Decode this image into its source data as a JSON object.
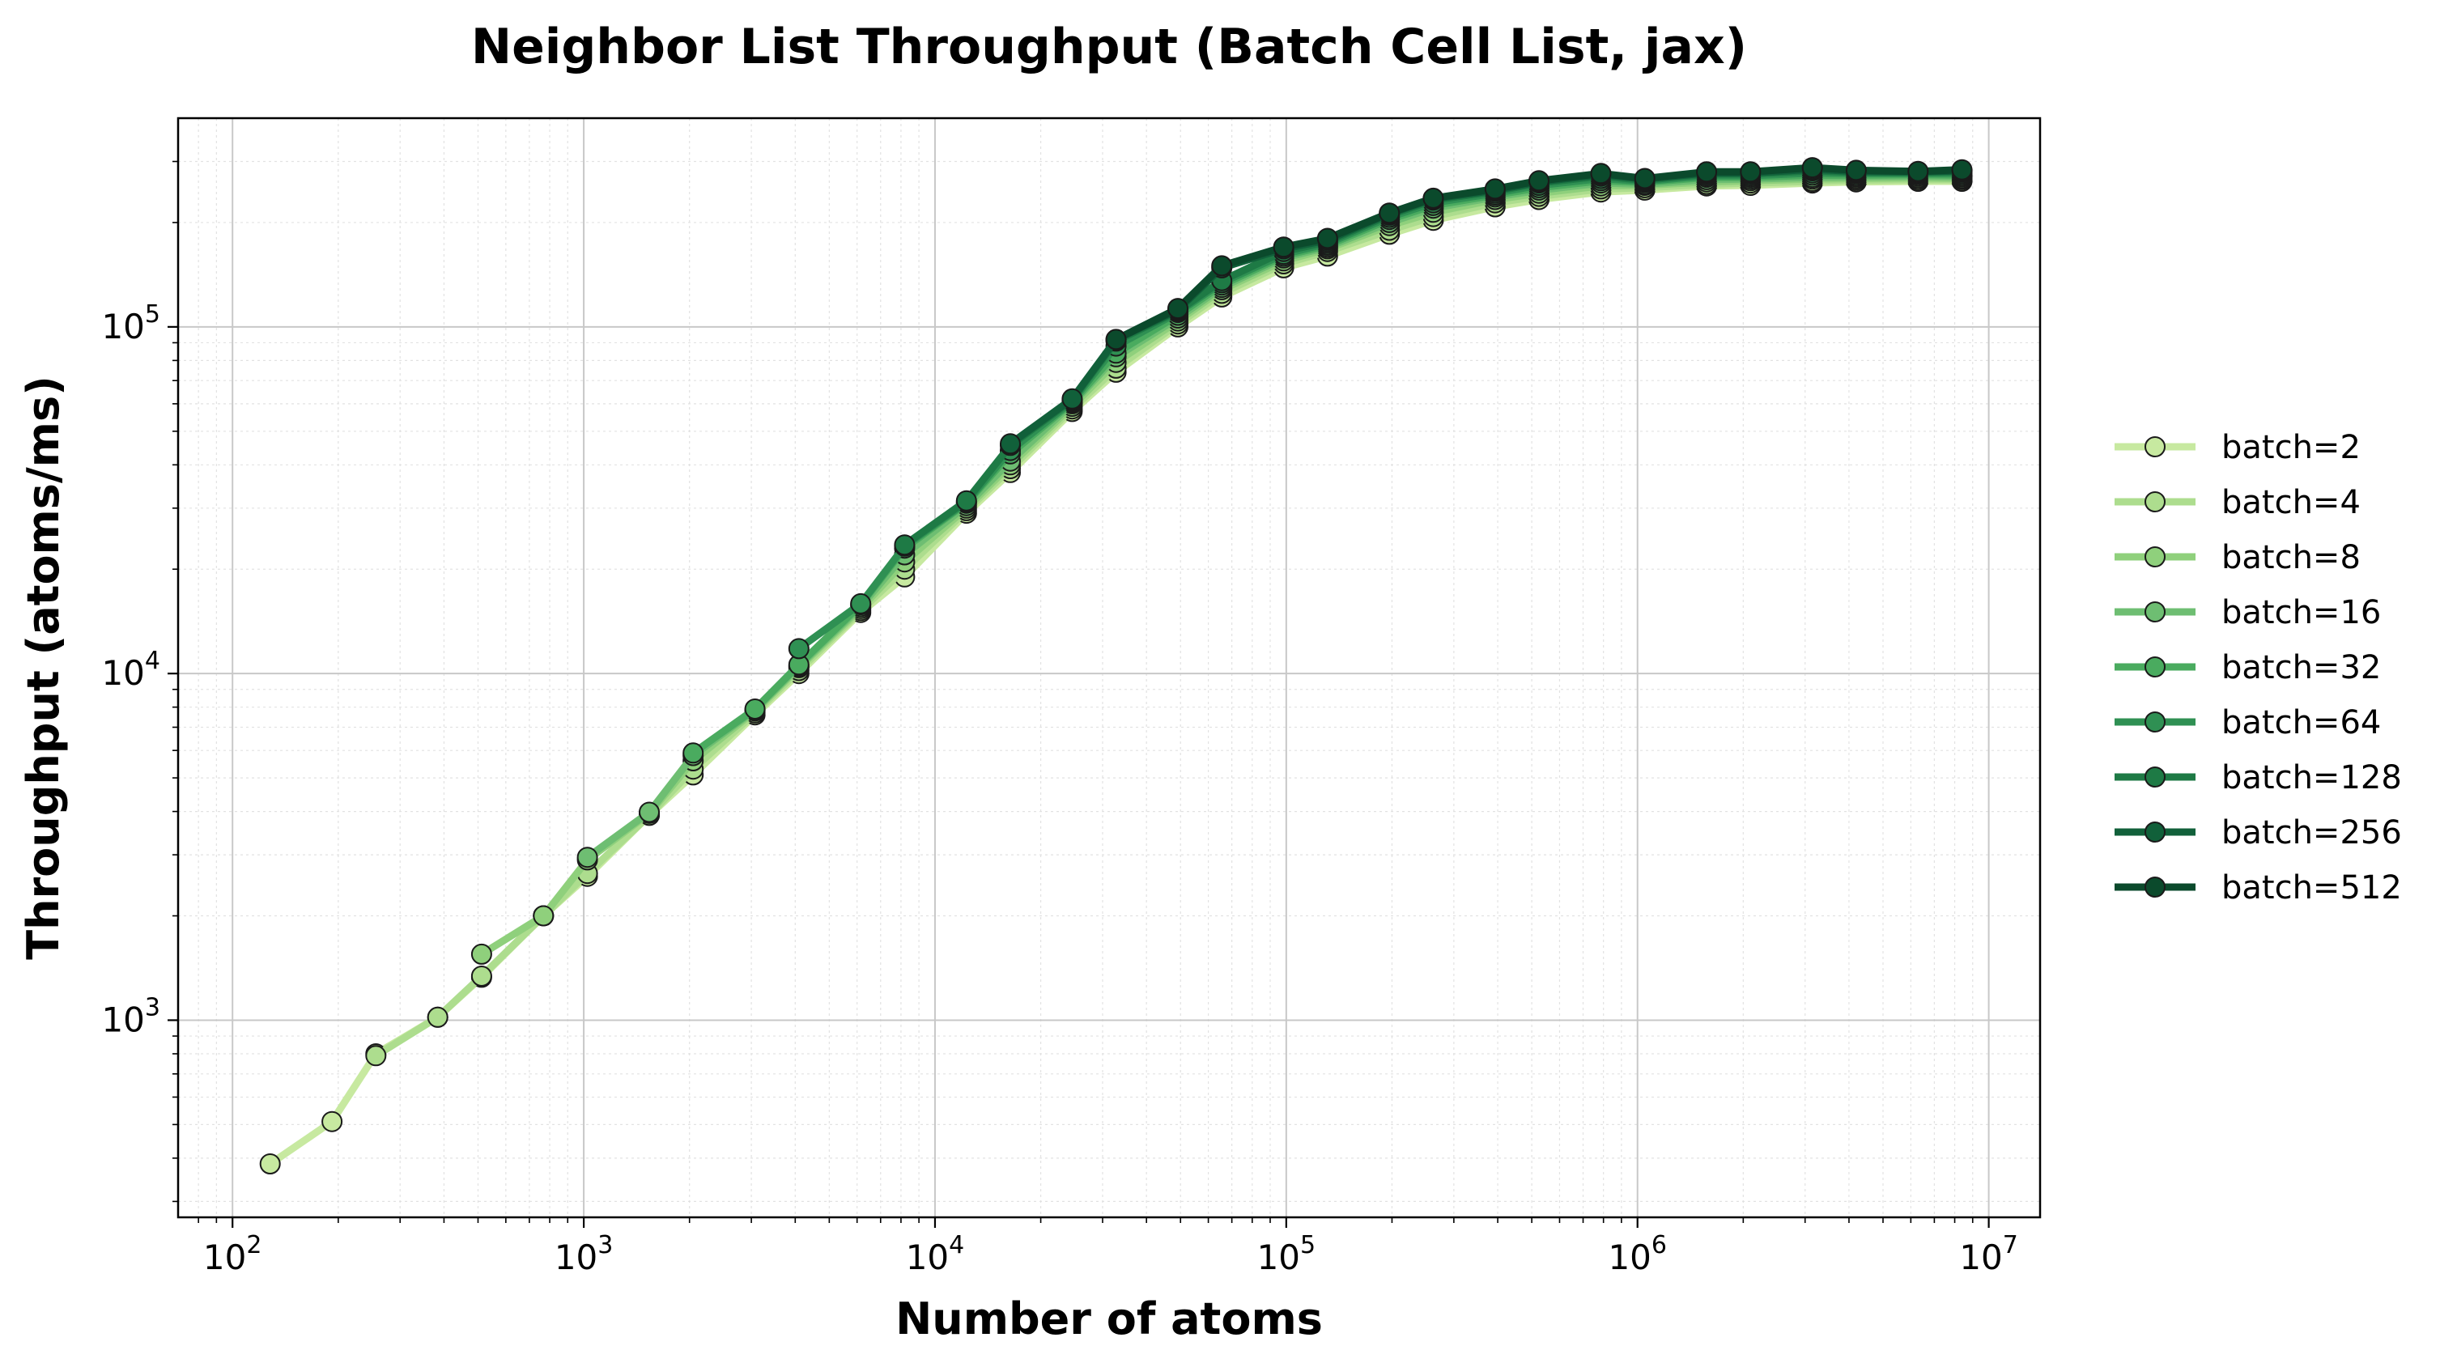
{
  "chart_data": {
    "type": "line",
    "title": "Neighbor List Throughput (Batch Cell List, jax)",
    "xlabel": "Number of atoms",
    "ylabel": "Throughput (atoms/ms)",
    "xscale": "log",
    "yscale": "log",
    "xlim": [
      70,
      14000000
    ],
    "ylim": [
      270,
      400000
    ],
    "grid": true,
    "legend_position": "outside-right",
    "x_ticks": [
      {
        "value": 100,
        "base": "10",
        "exp": "2"
      },
      {
        "value": 1000,
        "base": "10",
        "exp": "3"
      },
      {
        "value": 10000,
        "base": "10",
        "exp": "4"
      },
      {
        "value": 100000,
        "base": "10",
        "exp": "5"
      },
      {
        "value": 1000000,
        "base": "10",
        "exp": "6"
      },
      {
        "value": 10000000,
        "base": "10",
        "exp": "7"
      }
    ],
    "y_ticks": [
      {
        "value": 1000,
        "base": "10",
        "exp": "3"
      },
      {
        "value": 10000,
        "base": "10",
        "exp": "4"
      },
      {
        "value": 100000,
        "base": "10",
        "exp": "5"
      }
    ],
    "series": [
      {
        "name": "batch=2",
        "color": "#c7e9a0",
        "x": [
          128,
          192,
          256,
          384,
          512,
          768,
          1024,
          1536,
          2048,
          3072,
          4096,
          6144,
          8192,
          12288,
          16384,
          24576,
          32768,
          49152,
          65536,
          98304,
          131072,
          196608,
          262144,
          393216,
          524288,
          786432,
          1048576,
          1572864,
          2097152,
          3145728,
          4194304,
          6291456,
          8388608
        ],
        "y": [
          385,
          510,
          800,
          1020,
          1330,
          2000,
          2600,
          3900,
          5100,
          7600,
          10000,
          15000,
          19000,
          29000,
          38000,
          57000,
          74000,
          100000,
          122000,
          148000,
          160000,
          185000,
          203000,
          222000,
          233000,
          245000,
          248000,
          255000,
          256000,
          260000,
          262000,
          263000,
          263000
        ]
      },
      {
        "name": "batch=4",
        "color": "#addd8e",
        "x": [
          256,
          384,
          512,
          768,
          1024,
          1536,
          2048,
          3072,
          4096,
          6144,
          8192,
          12288,
          16384,
          24576,
          32768,
          49152,
          65536,
          98304,
          131072,
          196608,
          262144,
          393216,
          524288,
          786432,
          1048576,
          1572864,
          2097152,
          3145728,
          4194304,
          6291456,
          8388608
        ],
        "y": [
          790,
          1020,
          1340,
          2000,
          2650,
          3900,
          5300,
          7700,
          10200,
          15200,
          20000,
          29500,
          39000,
          58000,
          76000,
          102000,
          125000,
          152000,
          165000,
          190000,
          208000,
          228000,
          238000,
          250000,
          252000,
          258000,
          260000,
          263000,
          265000,
          266000,
          266000
        ]
      },
      {
        "name": "batch=8",
        "color": "#8fd07c",
        "x": [
          512,
          768,
          1024,
          1536,
          2048,
          3072,
          4096,
          6144,
          8192,
          12288,
          16384,
          24576,
          32768,
          49152,
          65536,
          98304,
          131072,
          196608,
          262144,
          393216,
          524288,
          786432,
          1048576,
          1572864,
          2097152,
          3145728,
          4194304,
          6291456,
          8388608
        ],
        "y": [
          1550,
          2000,
          2900,
          3950,
          5600,
          7800,
          10400,
          15400,
          21000,
          30000,
          40000,
          59000,
          79000,
          104000,
          128000,
          155000,
          168000,
          196000,
          214000,
          233000,
          243000,
          255000,
          256000,
          262000,
          264000,
          267000,
          268000,
          269000,
          268000
        ]
      },
      {
        "name": "batch=16",
        "color": "#6ebe72",
        "x": [
          1024,
          1536,
          2048,
          3072,
          4096,
          6144,
          8192,
          12288,
          16384,
          24576,
          32768,
          49152,
          65536,
          98304,
          131072,
          196608,
          262144,
          393216,
          524288,
          786432,
          1048576,
          1572864,
          2097152,
          3145728,
          4194304,
          6291456,
          8388608
        ],
        "y": [
          2950,
          3980,
          5800,
          7850,
          10500,
          15600,
          22000,
          30500,
          41000,
          60000,
          82000,
          106000,
          130000,
          158000,
          170000,
          200000,
          220000,
          237000,
          248000,
          260000,
          258000,
          266000,
          267000,
          270000,
          271000,
          272000,
          271000
        ]
      },
      {
        "name": "batch=32",
        "color": "#4aab5f",
        "x": [
          2048,
          3072,
          4096,
          6144,
          8192,
          12288,
          16384,
          24576,
          32768,
          49152,
          65536,
          98304,
          131072,
          196608,
          262144,
          393216,
          524288,
          786432,
          1048576,
          1572864,
          2097152,
          3145728,
          4194304,
          6291456,
          8388608
        ],
        "y": [
          5900,
          7900,
          10600,
          15800,
          23000,
          31000,
          43000,
          60500,
          84000,
          108000,
          132000,
          160000,
          172000,
          204000,
          224000,
          240000,
          252000,
          264000,
          261000,
          270000,
          270000,
          274000,
          274000,
          275000,
          274000
        ]
      },
      {
        "name": "batch=64",
        "color": "#2f9053",
        "x": [
          4096,
          6144,
          8192,
          12288,
          16384,
          24576,
          32768,
          49152,
          65536,
          98304,
          131072,
          196608,
          262144,
          393216,
          524288,
          786432,
          1048576,
          1572864,
          2097152,
          3145728,
          4194304,
          6291456,
          8388608
        ],
        "y": [
          11800,
          15900,
          23300,
          31200,
          44000,
          61000,
          88000,
          110000,
          134000,
          162000,
          174000,
          207000,
          228000,
          243000,
          256000,
          268000,
          263000,
          273000,
          273000,
          278000,
          277000,
          277000,
          277000
        ]
      },
      {
        "name": "batch=128",
        "color": "#1e7a45",
        "x": [
          8192,
          12288,
          16384,
          24576,
          32768,
          49152,
          65536,
          98304,
          131072,
          196608,
          262144,
          393216,
          524288,
          786432,
          1048576,
          1572864,
          2097152,
          3145728,
          4194304,
          6291456,
          8388608
        ],
        "y": [
          23500,
          31500,
          45500,
          61500,
          91000,
          111000,
          136000,
          165000,
          176000,
          210000,
          232000,
          246000,
          260000,
          272000,
          265000,
          276000,
          276000,
          282000,
          279000,
          279000,
          280000
        ]
      },
      {
        "name": "batch=256",
        "color": "#11603a",
        "x": [
          16384,
          24576,
          32768,
          49152,
          65536,
          98304,
          131072,
          196608,
          262144,
          393216,
          524288,
          786432,
          1048576,
          1572864,
          2097152,
          3145728,
          4194304,
          6291456,
          8388608
        ],
        "y": [
          46000,
          62000,
          92000,
          112000,
          148000,
          168000,
          178000,
          212000,
          234000,
          248000,
          262000,
          275000,
          267000,
          278000,
          278000,
          285000,
          281000,
          280000,
          282000
        ]
      },
      {
        "name": "batch=512",
        "color": "#0b4a2c",
        "x": [
          32768,
          49152,
          65536,
          98304,
          131072,
          196608,
          262144,
          393216,
          524288,
          786432,
          1048576,
          1572864,
          2097152,
          3145728,
          4194304,
          6291456,
          8388608
        ],
        "y": [
          92000,
          113000,
          150000,
          170000,
          180000,
          213000,
          235000,
          250000,
          264000,
          277000,
          268000,
          280000,
          280000,
          288000,
          283000,
          281000,
          284000
        ]
      }
    ]
  }
}
